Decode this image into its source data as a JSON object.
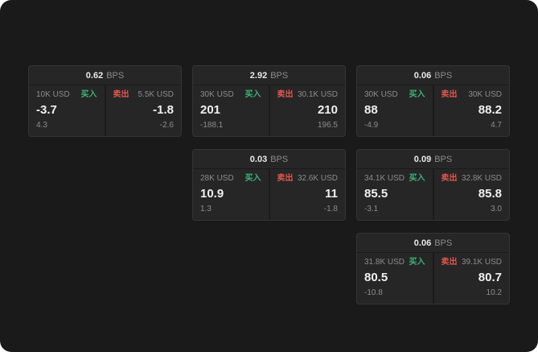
{
  "labels": {
    "bps": "BPS",
    "buy": "买入",
    "sell": "卖出"
  },
  "colors": {
    "buy": "#3cb474",
    "sell": "#e0574f",
    "background": "#1a1a1a",
    "card": "#262626"
  },
  "cards": [
    {
      "col": 1,
      "bps": "0.62",
      "buy_size": "10K USD",
      "sell_size": "5.5K USD",
      "buy_price": "-3.7",
      "sell_price": "-1.8",
      "buy_sub": "4.3",
      "sell_sub": "-2.6"
    },
    {
      "col": 2,
      "bps": "2.92",
      "buy_size": "30K USD",
      "sell_size": "30.1K USD",
      "buy_price": "201",
      "sell_price": "210",
      "buy_sub": "-188.1",
      "sell_sub": "196.5"
    },
    {
      "col": 3,
      "bps": "0.06",
      "buy_size": "30K USD",
      "sell_size": "30K USD",
      "buy_price": "88",
      "sell_price": "88.2",
      "buy_sub": "-4.9",
      "sell_sub": "4.7"
    },
    {
      "col": 2,
      "bps": "0.03",
      "buy_size": "28K USD",
      "sell_size": "32.6K USD",
      "buy_price": "10.9",
      "sell_price": "11",
      "buy_sub": "1.3",
      "sell_sub": "-1.8"
    },
    {
      "col": 3,
      "bps": "0.09",
      "buy_size": "34.1K USD",
      "sell_size": "32.8K USD",
      "buy_price": "85.5",
      "sell_price": "85.8",
      "buy_sub": "-3.1",
      "sell_sub": "3.0"
    },
    {
      "col": 3,
      "bps": "0.06",
      "buy_size": "31.8K USD",
      "sell_size": "39.1K USD",
      "buy_price": "80.5",
      "sell_price": "80.7",
      "buy_sub": "-10.8",
      "sell_sub": "10.2"
    }
  ]
}
